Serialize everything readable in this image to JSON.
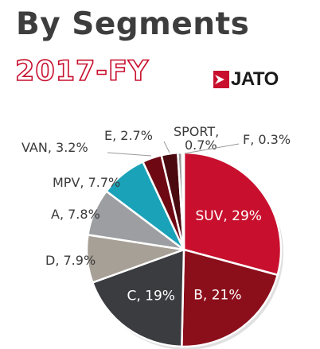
{
  "header": {
    "title": "By Segments",
    "subtitle": "2017-FY",
    "brand": "JATO"
  },
  "colors": {
    "title": "#3d3d3d",
    "accent_red": "#c8102e",
    "dark_gray": "#3b3c40",
    "white": "#ffffff"
  },
  "chart_data": {
    "type": "pie",
    "title": "By Segments",
    "subtitle": "2017-FY",
    "start": "12 o'clock",
    "direction": "clockwise",
    "legend": "none",
    "slices": [
      {
        "label": "SUV, 29%",
        "name": "SUV",
        "value": 29,
        "color": "#c8102e",
        "label_pos": "inside"
      },
      {
        "label": "B, 21%",
        "name": "B",
        "value": 21,
        "color": "#8b0f1b",
        "label_pos": "inside"
      },
      {
        "label": "C, 19%",
        "name": "C",
        "value": 19,
        "color": "#3b3c40",
        "label_pos": "inside"
      },
      {
        "label": "D, 7.9%",
        "name": "D",
        "value": 7.9,
        "color": "#a7a096",
        "label_pos": "outside"
      },
      {
        "label": "A, 7.8%",
        "name": "A",
        "value": 7.8,
        "color": "#9c9ea1",
        "label_pos": "outside"
      },
      {
        "label": "MPV, 7.7%",
        "name": "MPV",
        "value": 7.7,
        "color": "#1aa2b8",
        "label_pos": "outside"
      },
      {
        "label": "VAN, 3.2%",
        "name": "VAN",
        "value": 3.2,
        "color": "#6e0913",
        "label_pos": "outside"
      },
      {
        "label": "E, 2.7%",
        "name": "E",
        "value": 2.7,
        "color": "#4a0a10",
        "label_pos": "outside"
      },
      {
        "label": "SPORT, 0.7%",
        "name": "SPORT",
        "value": 0.7,
        "color": "#999999",
        "label_pos": "outside"
      },
      {
        "label": "F, 0.3%",
        "name": "F",
        "value": 0.3,
        "color": "#d4d4d4",
        "label_pos": "outside"
      }
    ]
  }
}
